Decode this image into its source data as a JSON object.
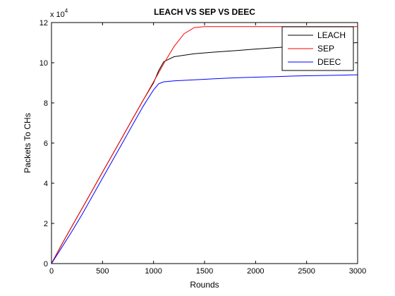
{
  "chart_data": {
    "type": "line",
    "title": "LEACH VS SEP VS DEEC",
    "xlabel": "Rounds",
    "ylabel": "Packets To CHs",
    "y_multiplier_label": "x 10",
    "y_multiplier_exponent": "4",
    "xlim": [
      0,
      3000
    ],
    "ylim": [
      0,
      120000
    ],
    "xticks": [
      0,
      500,
      1000,
      1500,
      2000,
      2500,
      3000
    ],
    "yticks": [
      0,
      20000,
      40000,
      60000,
      80000,
      100000,
      120000
    ],
    "ytick_labels": [
      "0",
      "2",
      "4",
      "6",
      "8",
      "10",
      "12"
    ],
    "grid": false,
    "legend_position": "top-right",
    "series": [
      {
        "name": "LEACH",
        "color": "#000000",
        "x": [
          0,
          100,
          200,
          300,
          400,
          500,
          600,
          700,
          800,
          900,
          1000,
          1050,
          1100,
          1200,
          1400,
          1600,
          1800,
          2000,
          2200,
          2400,
          2600,
          2800,
          3000
        ],
        "y": [
          0,
          9500,
          18500,
          27500,
          36500,
          45500,
          54500,
          63500,
          72500,
          81500,
          90000,
          96000,
          100500,
          103000,
          104500,
          105300,
          106000,
          106800,
          107500,
          108200,
          108900,
          109500,
          110000
        ]
      },
      {
        "name": "SEP",
        "color": "#ff0000",
        "x": [
          0,
          100,
          200,
          300,
          400,
          500,
          600,
          700,
          800,
          900,
          1000,
          1100,
          1200,
          1300,
          1400,
          1500,
          1600,
          1800,
          2000,
          2200,
          2400,
          2600,
          2800,
          3000
        ],
        "y": [
          0,
          9500,
          18500,
          27500,
          36500,
          45500,
          54500,
          63500,
          72500,
          81500,
          90500,
          99500,
          108000,
          114500,
          117500,
          118000,
          118000,
          118000,
          118000,
          118000,
          118000,
          118000,
          118000,
          118000
        ]
      },
      {
        "name": "DEEC",
        "color": "#0000ff",
        "x": [
          0,
          100,
          200,
          300,
          400,
          500,
          600,
          700,
          800,
          900,
          1000,
          1050,
          1100,
          1200,
          1400,
          1600,
          1800,
          2000,
          2200,
          2400,
          2600,
          2800,
          3000
        ],
        "y": [
          0,
          8000,
          16000,
          24500,
          33500,
          42500,
          51500,
          60500,
          69500,
          78500,
          86500,
          89500,
          90500,
          91000,
          91500,
          92000,
          92500,
          92800,
          93100,
          93400,
          93600,
          93800,
          94000
        ]
      }
    ]
  }
}
